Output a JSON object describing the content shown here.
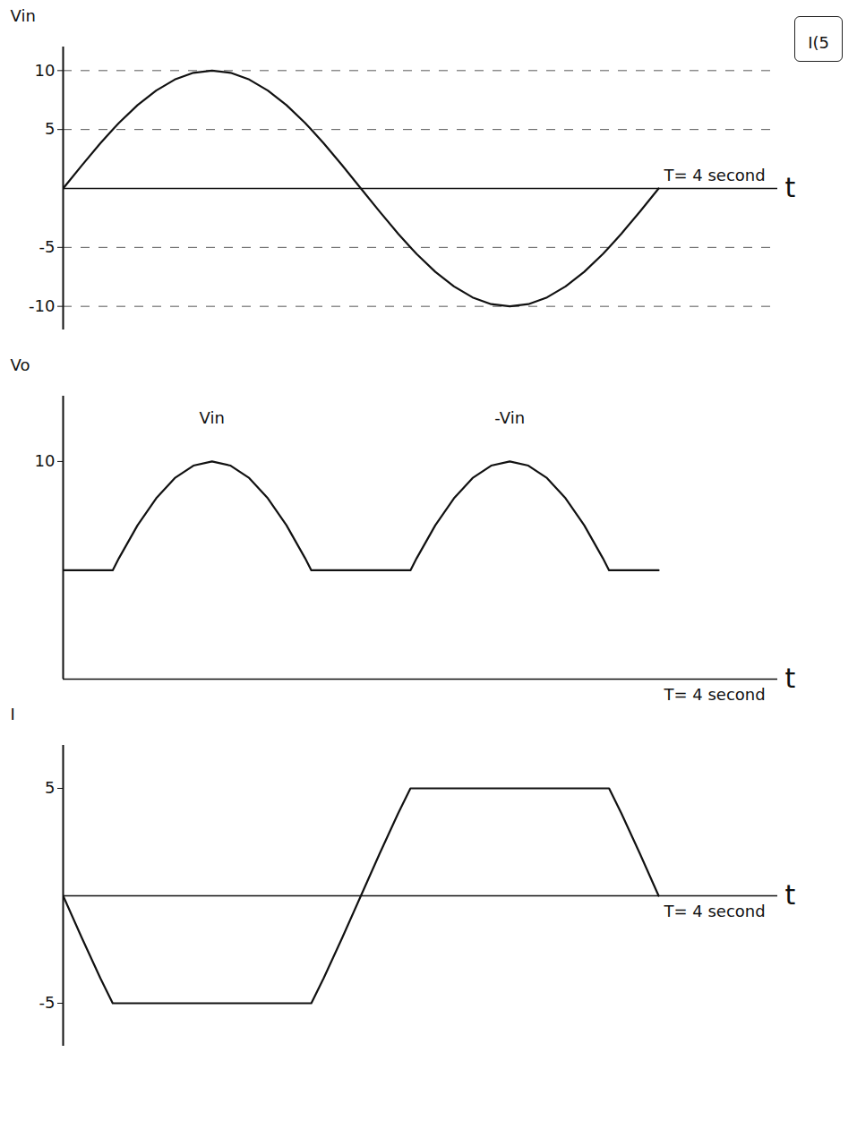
{
  "note": "I(5",
  "chart_data": [
    {
      "type": "line",
      "y_label": "Vin",
      "x_label": "t",
      "color": "#111111",
      "grid": true,
      "tick_labels": "y",
      "xlim": [
        0,
        4.8
      ],
      "ylim": [
        -12,
        12
      ],
      "yticks": [
        -10,
        -5,
        5,
        10
      ],
      "x": [
        0,
        0.125,
        0.25,
        0.333,
        0.375,
        0.5,
        0.625,
        0.75,
        0.875,
        1,
        1.125,
        1.25,
        1.375,
        1.5,
        1.625,
        1.667,
        1.75,
        1.875,
        2,
        2.125,
        2.25,
        2.333,
        2.375,
        2.5,
        2.625,
        2.75,
        2.875,
        3,
        3.125,
        3.25,
        3.375,
        3.5,
        3.625,
        3.667,
        3.75,
        3.875,
        4
      ],
      "values": [
        0,
        1.95,
        3.83,
        5,
        5.56,
        7.07,
        8.31,
        9.24,
        9.81,
        10,
        9.81,
        9.24,
        8.31,
        7.07,
        5.56,
        5,
        3.83,
        1.95,
        0,
        -1.95,
        -3.83,
        -5,
        -5.56,
        -7.07,
        -8.31,
        -9.24,
        -9.81,
        -10,
        -9.81,
        -9.24,
        -8.31,
        -7.07,
        -5.56,
        -5,
        -3.83,
        -1.95,
        0
      ],
      "annotations": [
        {
          "text": "T= 4 second",
          "x": 4,
          "y": 0
        }
      ]
    },
    {
      "type": "line",
      "y_label": "Vo",
      "x_label": "t",
      "color": "#111111",
      "grid": false,
      "tick_labels": "y",
      "xlim": [
        0,
        4.8
      ],
      "ylim": [
        0,
        13
      ],
      "yticks": [
        10
      ],
      "x": [
        0,
        0.125,
        0.25,
        0.333,
        0.375,
        0.5,
        0.625,
        0.75,
        0.875,
        1,
        1.125,
        1.25,
        1.375,
        1.5,
        1.625,
        1.667,
        1.75,
        1.875,
        2,
        2.125,
        2.25,
        2.333,
        2.375,
        2.5,
        2.625,
        2.75,
        2.875,
        3,
        3.125,
        3.25,
        3.375,
        3.5,
        3.625,
        3.667,
        3.75,
        3.875,
        4
      ],
      "values": [
        5,
        5,
        5,
        5,
        5.56,
        7.07,
        8.31,
        9.24,
        9.81,
        10,
        9.81,
        9.24,
        8.31,
        7.07,
        5.56,
        5,
        5,
        5,
        5,
        5,
        5,
        5,
        5.56,
        7.07,
        8.31,
        9.24,
        9.81,
        10,
        9.81,
        9.24,
        8.31,
        7.07,
        5.56,
        5,
        5,
        5,
        5
      ],
      "annotations": [
        {
          "text": "Vin",
          "x": 1,
          "y": 12
        },
        {
          "text": "-Vin",
          "x": 3,
          "y": 12
        },
        {
          "text": "T= 4 second",
          "x": 4,
          "y": 0
        }
      ]
    },
    {
      "type": "line",
      "y_label": "I",
      "x_label": "t",
      "color": "#111111",
      "grid": false,
      "tick_labels": "y",
      "xlim": [
        0,
        4.8
      ],
      "ylim": [
        -7,
        7
      ],
      "yticks": [
        -5,
        5
      ],
      "x": [
        0,
        0.125,
        0.25,
        0.333,
        0.375,
        0.5,
        0.625,
        0.75,
        0.875,
        1,
        1.125,
        1.25,
        1.375,
        1.5,
        1.625,
        1.667,
        1.75,
        1.875,
        2,
        2.125,
        2.25,
        2.333,
        2.375,
        2.5,
        2.625,
        2.75,
        2.875,
        3,
        3.125,
        3.25,
        3.375,
        3.5,
        3.625,
        3.667,
        3.75,
        3.875,
        4
      ],
      "values": [
        0,
        -1.95,
        -3.83,
        -5,
        -5,
        -5,
        -5,
        -5,
        -5,
        -5,
        -5,
        -5,
        -5,
        -5,
        -5,
        -5,
        -3.83,
        -1.95,
        0,
        1.95,
        3.83,
        5,
        5,
        5,
        5,
        5,
        5,
        5,
        5,
        5,
        5,
        5,
        5,
        5,
        3.83,
        1.95,
        0
      ],
      "annotations": [
        {
          "text": "T= 4 second",
          "x": 4,
          "y": 0
        }
      ]
    }
  ]
}
